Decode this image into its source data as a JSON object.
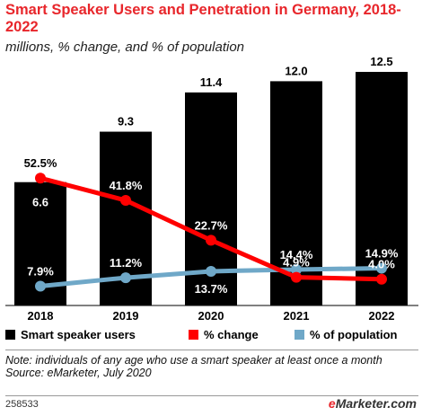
{
  "header": {
    "title": "Smart Speaker Users and Penetration in Germany, 2018-2022",
    "subtitle": "millions, % change, and % of population"
  },
  "colors": {
    "bar": "#000000",
    "change": "#ff0000",
    "population": "#6fa8c8",
    "title": "#e8262b"
  },
  "chart_data": {
    "type": "bar",
    "title": "Smart Speaker Users and Penetration in Germany, 2018-2022",
    "subtitle": "millions, % change, and % of population",
    "categories": [
      "2018",
      "2019",
      "2020",
      "2021",
      "2022"
    ],
    "series": [
      {
        "name": "Smart speaker users",
        "type": "bar",
        "values": [
          6.6,
          9.3,
          11.4,
          12.0,
          12.5
        ],
        "labels": [
          "6.6",
          "9.3",
          "11.4",
          "12.0",
          "12.5"
        ]
      },
      {
        "name": "% change",
        "type": "line",
        "values": [
          52.5,
          41.8,
          22.7,
          4.9,
          4.0
        ],
        "labels": [
          "52.5%",
          "41.8%",
          "22.7%",
          "4.9%",
          "4.0%"
        ]
      },
      {
        "name": "% of population",
        "type": "line",
        "values": [
          7.9,
          11.2,
          13.7,
          14.4,
          14.9
        ],
        "labels": [
          "7.9%",
          "11.2%",
          "13.7%",
          "14.4%",
          "14.9%"
        ]
      }
    ],
    "legend_position": "bottom"
  },
  "footer": {
    "note": "Note: individuals of any age who use a smart speaker at least once a month",
    "source": "Source: eMarketer, July 2020",
    "chart_id": "258533",
    "brand_e": "e",
    "brand_rest": "Marketer",
    "brand_tld": ".com"
  }
}
